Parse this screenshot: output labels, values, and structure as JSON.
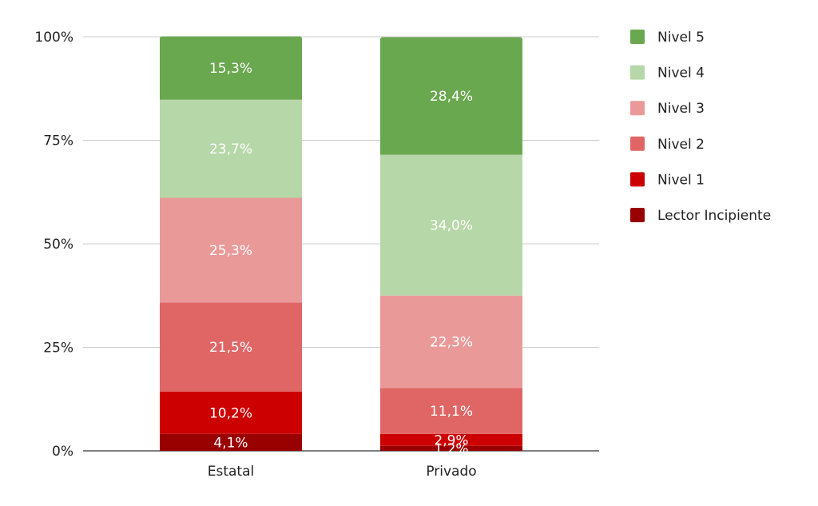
{
  "chart_data": {
    "type": "stacked-bar-100",
    "categories": [
      "Estatal",
      "Privado"
    ],
    "ylim": [
      0,
      100
    ],
    "yticks": [
      0,
      25,
      50,
      75,
      100
    ],
    "ytick_labels": [
      "0%",
      "25%",
      "50%",
      "75%",
      "100%"
    ],
    "grid": true,
    "legend_position": "right",
    "series": [
      {
        "name": "Lector Incipiente",
        "color": "#990000",
        "values": [
          4.1,
          1.2
        ],
        "labels": [
          "4,1%",
          "1,2%"
        ]
      },
      {
        "name": "Nivel 1",
        "color": "#cc0000",
        "values": [
          10.2,
          2.9
        ],
        "labels": [
          "10,2%",
          "2,9%"
        ]
      },
      {
        "name": "Nivel 2",
        "color": "#e06666",
        "values": [
          21.5,
          11.1
        ],
        "labels": [
          "21,5%",
          "11,1%"
        ]
      },
      {
        "name": "Nivel 3",
        "color": "#ea9999",
        "values": [
          25.3,
          22.3
        ],
        "labels": [
          "25,3%",
          "22,3%"
        ]
      },
      {
        "name": "Nivel 4",
        "color": "#b6d7a8",
        "values": [
          23.7,
          34.0
        ],
        "labels": [
          "23,7%",
          "34,0%"
        ]
      },
      {
        "name": "Nivel 5",
        "color": "#6aa84f",
        "values": [
          15.3,
          28.4
        ],
        "labels": [
          "15,3%",
          "28,4%"
        ]
      }
    ],
    "legend_order": [
      "Nivel 5",
      "Nivel 4",
      "Nivel 3",
      "Nivel 2",
      "Nivel 1",
      "Lector Incipiente"
    ]
  }
}
